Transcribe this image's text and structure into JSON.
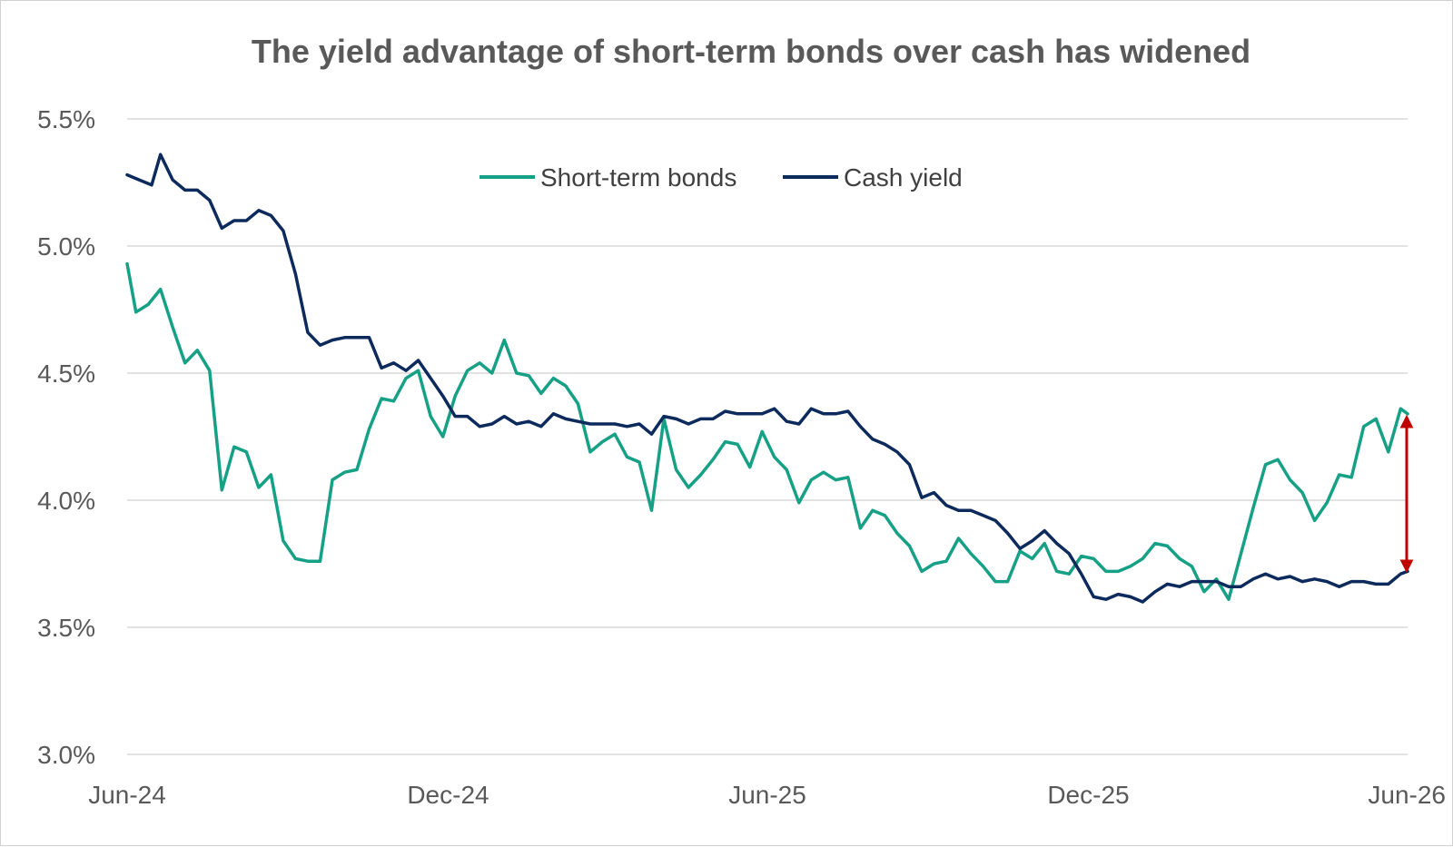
{
  "chart_data": {
    "type": "line",
    "title": "The yield advantage of short-term bonds over cash has widened",
    "xlabel": "",
    "ylabel": "",
    "x_start": "2024-06-01",
    "x_end": "2026-06-01",
    "x_ticks": [
      {
        "date": "2024-06-01",
        "label": "Jun-24"
      },
      {
        "date": "2024-12-01",
        "label": "Dec-24"
      },
      {
        "date": "2025-06-01",
        "label": "Jun-25"
      },
      {
        "date": "2025-12-01",
        "label": "Dec-25"
      },
      {
        "date": "2026-06-01",
        "label": "Jun-26"
      }
    ],
    "ylim": [
      3.0,
      5.5
    ],
    "y_ticks": [
      {
        "value": 3.0,
        "label": "3.0%"
      },
      {
        "value": 3.5,
        "label": "3.5%"
      },
      {
        "value": 4.0,
        "label": "4.0%"
      },
      {
        "value": 4.5,
        "label": "4.5%"
      },
      {
        "value": 5.0,
        "label": "5.0%"
      },
      {
        "value": 5.5,
        "label": "5.5%"
      }
    ],
    "grid": "horizontal",
    "legend_position": "top-center",
    "series": [
      {
        "name": "Short-term bonds",
        "color": "#16a085",
        "points": [
          [
            "2024-06-01",
            4.93
          ],
          [
            "2024-06-06",
            4.74
          ],
          [
            "2024-06-13",
            4.77
          ],
          [
            "2024-06-20",
            4.83
          ],
          [
            "2024-06-27",
            4.68
          ],
          [
            "2024-07-04",
            4.54
          ],
          [
            "2024-07-11",
            4.59
          ],
          [
            "2024-07-18",
            4.51
          ],
          [
            "2024-07-25",
            4.04
          ],
          [
            "2024-08-01",
            4.21
          ],
          [
            "2024-08-08",
            4.19
          ],
          [
            "2024-08-15",
            4.05
          ],
          [
            "2024-08-22",
            4.1
          ],
          [
            "2024-08-29",
            3.84
          ],
          [
            "2024-09-05",
            3.77
          ],
          [
            "2024-09-12",
            3.76
          ],
          [
            "2024-09-19",
            3.76
          ],
          [
            "2024-09-26",
            4.08
          ],
          [
            "2024-10-03",
            4.11
          ],
          [
            "2024-10-10",
            4.12
          ],
          [
            "2024-10-17",
            4.28
          ],
          [
            "2024-10-24",
            4.4
          ],
          [
            "2024-10-31",
            4.39
          ],
          [
            "2024-11-07",
            4.48
          ],
          [
            "2024-11-14",
            4.51
          ],
          [
            "2024-11-21",
            4.33
          ],
          [
            "2024-11-28",
            4.25
          ],
          [
            "2024-12-05",
            4.41
          ],
          [
            "2024-12-12",
            4.51
          ],
          [
            "2024-12-19",
            4.54
          ],
          [
            "2024-12-26",
            4.5
          ],
          [
            "2025-01-02",
            4.63
          ],
          [
            "2025-01-09",
            4.5
          ],
          [
            "2025-01-16",
            4.49
          ],
          [
            "2025-01-23",
            4.42
          ],
          [
            "2025-01-30",
            4.48
          ],
          [
            "2025-02-06",
            4.45
          ],
          [
            "2025-02-13",
            4.38
          ],
          [
            "2025-02-20",
            4.19
          ],
          [
            "2025-02-27",
            4.23
          ],
          [
            "2025-03-06",
            4.26
          ],
          [
            "2025-03-13",
            4.17
          ],
          [
            "2025-03-20",
            4.15
          ],
          [
            "2025-03-27",
            3.96
          ],
          [
            "2025-04-03",
            4.32
          ],
          [
            "2025-04-10",
            4.12
          ],
          [
            "2025-04-17",
            4.05
          ],
          [
            "2025-04-24",
            4.1
          ],
          [
            "2025-05-01",
            4.16
          ],
          [
            "2025-05-08",
            4.23
          ],
          [
            "2025-05-15",
            4.22
          ],
          [
            "2025-05-22",
            4.13
          ],
          [
            "2025-05-29",
            4.27
          ],
          [
            "2025-06-05",
            4.17
          ],
          [
            "2025-06-12",
            4.12
          ],
          [
            "2025-06-19",
            3.99
          ],
          [
            "2025-06-26",
            4.08
          ],
          [
            "2025-07-03",
            4.11
          ],
          [
            "2025-07-10",
            4.08
          ],
          [
            "2025-07-17",
            4.09
          ],
          [
            "2025-07-24",
            3.89
          ],
          [
            "2025-07-31",
            3.96
          ],
          [
            "2025-08-07",
            3.94
          ],
          [
            "2025-08-14",
            3.87
          ],
          [
            "2025-08-21",
            3.82
          ],
          [
            "2025-08-28",
            3.72
          ],
          [
            "2025-09-04",
            3.75
          ],
          [
            "2025-09-11",
            3.76
          ],
          [
            "2025-09-18",
            3.85
          ],
          [
            "2025-09-25",
            3.79
          ],
          [
            "2025-10-02",
            3.74
          ],
          [
            "2025-10-09",
            3.68
          ],
          [
            "2025-10-16",
            3.68
          ],
          [
            "2025-10-23",
            3.8
          ],
          [
            "2025-10-30",
            3.77
          ],
          [
            "2025-11-06",
            3.83
          ],
          [
            "2025-11-13",
            3.72
          ],
          [
            "2025-11-20",
            3.71
          ],
          [
            "2025-11-27",
            3.78
          ],
          [
            "2025-12-04",
            3.77
          ],
          [
            "2025-12-11",
            3.72
          ],
          [
            "2025-12-18",
            3.72
          ],
          [
            "2025-12-25",
            3.74
          ],
          [
            "2026-01-01",
            3.77
          ],
          [
            "2026-01-08",
            3.83
          ],
          [
            "2026-01-15",
            3.82
          ],
          [
            "2026-01-22",
            3.77
          ],
          [
            "2026-01-29",
            3.74
          ],
          [
            "2026-02-05",
            3.64
          ],
          [
            "2026-02-12",
            3.69
          ],
          [
            "2026-02-19",
            3.61
          ],
          [
            "2026-02-26",
            3.79
          ],
          [
            "2026-03-05",
            3.97
          ],
          [
            "2026-03-12",
            4.14
          ],
          [
            "2026-03-19",
            4.16
          ],
          [
            "2026-03-26",
            4.08
          ],
          [
            "2026-04-02",
            4.03
          ],
          [
            "2026-04-09",
            3.92
          ],
          [
            "2026-04-16",
            3.99
          ],
          [
            "2026-04-23",
            4.1
          ],
          [
            "2026-04-30",
            4.09
          ],
          [
            "2026-05-07",
            4.29
          ],
          [
            "2026-05-14",
            4.32
          ],
          [
            "2026-05-21",
            4.19
          ],
          [
            "2026-05-28",
            4.36
          ],
          [
            "2026-06-01",
            4.34
          ]
        ]
      },
      {
        "name": "Cash yield",
        "color": "#0d2a5c",
        "points": [
          [
            "2024-06-01",
            5.28
          ],
          [
            "2024-06-08",
            5.26
          ],
          [
            "2024-06-15",
            5.24
          ],
          [
            "2024-06-20",
            5.36
          ],
          [
            "2024-06-27",
            5.26
          ],
          [
            "2024-07-04",
            5.22
          ],
          [
            "2024-07-11",
            5.22
          ],
          [
            "2024-07-18",
            5.18
          ],
          [
            "2024-07-25",
            5.07
          ],
          [
            "2024-08-01",
            5.1
          ],
          [
            "2024-08-08",
            5.1
          ],
          [
            "2024-08-15",
            5.14
          ],
          [
            "2024-08-22",
            5.12
          ],
          [
            "2024-08-29",
            5.06
          ],
          [
            "2024-09-05",
            4.89
          ],
          [
            "2024-09-12",
            4.66
          ],
          [
            "2024-09-19",
            4.61
          ],
          [
            "2024-09-26",
            4.63
          ],
          [
            "2024-10-03",
            4.64
          ],
          [
            "2024-10-10",
            4.64
          ],
          [
            "2024-10-17",
            4.64
          ],
          [
            "2024-10-24",
            4.52
          ],
          [
            "2024-10-31",
            4.54
          ],
          [
            "2024-11-07",
            4.51
          ],
          [
            "2024-11-14",
            4.55
          ],
          [
            "2024-11-21",
            4.48
          ],
          [
            "2024-11-28",
            4.41
          ],
          [
            "2024-12-05",
            4.33
          ],
          [
            "2024-12-12",
            4.33
          ],
          [
            "2024-12-19",
            4.29
          ],
          [
            "2024-12-26",
            4.3
          ],
          [
            "2025-01-02",
            4.33
          ],
          [
            "2025-01-09",
            4.3
          ],
          [
            "2025-01-16",
            4.31
          ],
          [
            "2025-01-23",
            4.29
          ],
          [
            "2025-01-30",
            4.34
          ],
          [
            "2025-02-06",
            4.32
          ],
          [
            "2025-02-13",
            4.31
          ],
          [
            "2025-02-20",
            4.3
          ],
          [
            "2025-02-27",
            4.3
          ],
          [
            "2025-03-06",
            4.3
          ],
          [
            "2025-03-13",
            4.29
          ],
          [
            "2025-03-20",
            4.3
          ],
          [
            "2025-03-27",
            4.26
          ],
          [
            "2025-04-03",
            4.33
          ],
          [
            "2025-04-10",
            4.32
          ],
          [
            "2025-04-17",
            4.3
          ],
          [
            "2025-04-24",
            4.32
          ],
          [
            "2025-05-01",
            4.32
          ],
          [
            "2025-05-08",
            4.35
          ],
          [
            "2025-05-15",
            4.34
          ],
          [
            "2025-05-22",
            4.34
          ],
          [
            "2025-05-29",
            4.34
          ],
          [
            "2025-06-05",
            4.36
          ],
          [
            "2025-06-12",
            4.31
          ],
          [
            "2025-06-19",
            4.3
          ],
          [
            "2025-06-26",
            4.36
          ],
          [
            "2025-07-03",
            4.34
          ],
          [
            "2025-07-10",
            4.34
          ],
          [
            "2025-07-17",
            4.35
          ],
          [
            "2025-07-24",
            4.29
          ],
          [
            "2025-07-31",
            4.24
          ],
          [
            "2025-08-07",
            4.22
          ],
          [
            "2025-08-14",
            4.19
          ],
          [
            "2025-08-21",
            4.14
          ],
          [
            "2025-08-28",
            4.01
          ],
          [
            "2025-09-04",
            4.03
          ],
          [
            "2025-09-11",
            3.98
          ],
          [
            "2025-09-18",
            3.96
          ],
          [
            "2025-09-25",
            3.96
          ],
          [
            "2025-10-02",
            3.94
          ],
          [
            "2025-10-09",
            3.92
          ],
          [
            "2025-10-16",
            3.87
          ],
          [
            "2025-10-23",
            3.81
          ],
          [
            "2025-10-30",
            3.84
          ],
          [
            "2025-11-06",
            3.88
          ],
          [
            "2025-11-13",
            3.83
          ],
          [
            "2025-11-20",
            3.79
          ],
          [
            "2025-11-27",
            3.71
          ],
          [
            "2025-12-04",
            3.62
          ],
          [
            "2025-12-11",
            3.61
          ],
          [
            "2025-12-18",
            3.63
          ],
          [
            "2025-12-25",
            3.62
          ],
          [
            "2026-01-01",
            3.6
          ],
          [
            "2026-01-08",
            3.64
          ],
          [
            "2026-01-15",
            3.67
          ],
          [
            "2026-01-22",
            3.66
          ],
          [
            "2026-01-29",
            3.68
          ],
          [
            "2026-02-05",
            3.68
          ],
          [
            "2026-02-12",
            3.68
          ],
          [
            "2026-02-19",
            3.66
          ],
          [
            "2026-02-26",
            3.66
          ],
          [
            "2026-03-05",
            3.69
          ],
          [
            "2026-03-12",
            3.71
          ],
          [
            "2026-03-19",
            3.69
          ],
          [
            "2026-03-26",
            3.7
          ],
          [
            "2026-04-02",
            3.68
          ],
          [
            "2026-04-09",
            3.69
          ],
          [
            "2026-04-16",
            3.68
          ],
          [
            "2026-04-23",
            3.66
          ],
          [
            "2026-04-30",
            3.68
          ],
          [
            "2026-05-07",
            3.68
          ],
          [
            "2026-05-14",
            3.67
          ],
          [
            "2026-05-21",
            3.67
          ],
          [
            "2026-05-28",
            3.71
          ],
          [
            "2026-06-01",
            3.72
          ]
        ]
      }
    ],
    "annotations": [
      {
        "type": "double-arrow",
        "date": "2026-06-01",
        "from": 3.74,
        "to": 4.31,
        "color": "#c00000"
      }
    ]
  }
}
